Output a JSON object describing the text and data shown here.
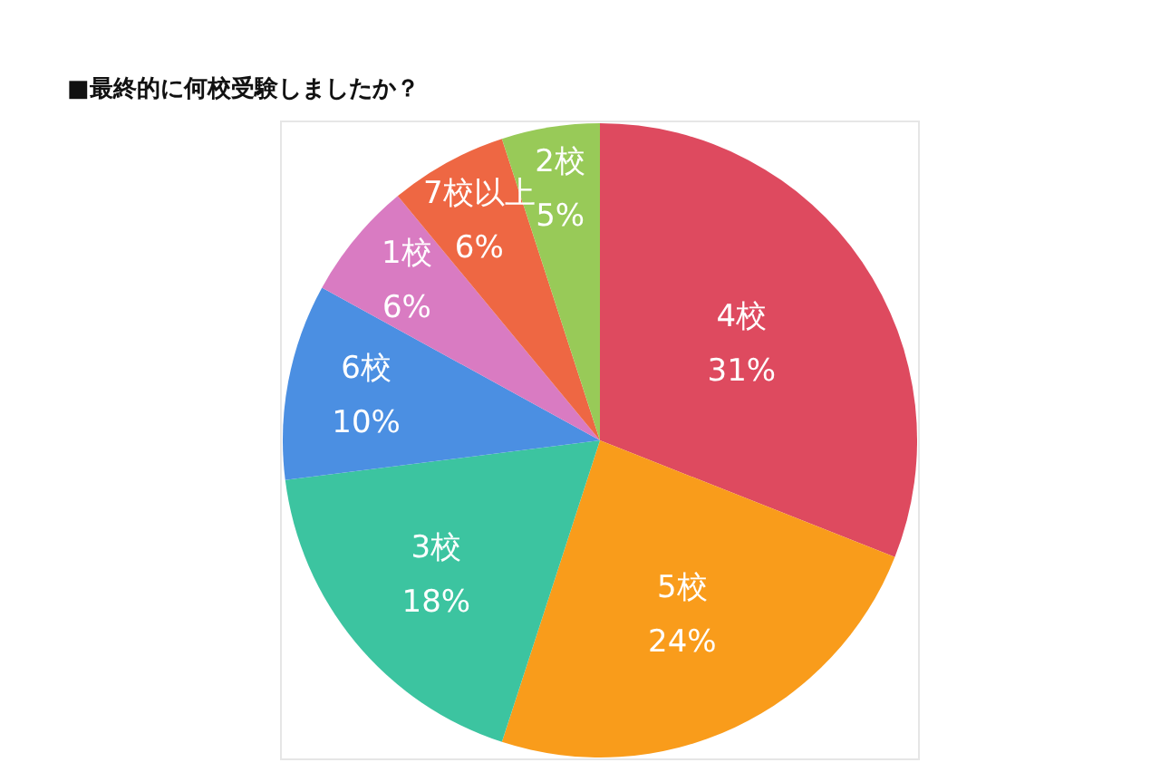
{
  "chart_data": {
    "type": "pie",
    "title": "■最終的に何校受験しましたか？",
    "categories": [
      "4校",
      "5校",
      "3校",
      "6校",
      "1校",
      "7校以上",
      "2校"
    ],
    "values": [
      31,
      24,
      18,
      10,
      6,
      6,
      5
    ],
    "value_labels": [
      "31%",
      "24%",
      "18%",
      "10%",
      "6%",
      "6%",
      "5%"
    ],
    "colors": [
      "#de4a5f",
      "#f99c1b",
      "#3cc4a0",
      "#4b8fe2",
      "#d97bc2",
      "#ee6743",
      "#98ca58"
    ]
  }
}
